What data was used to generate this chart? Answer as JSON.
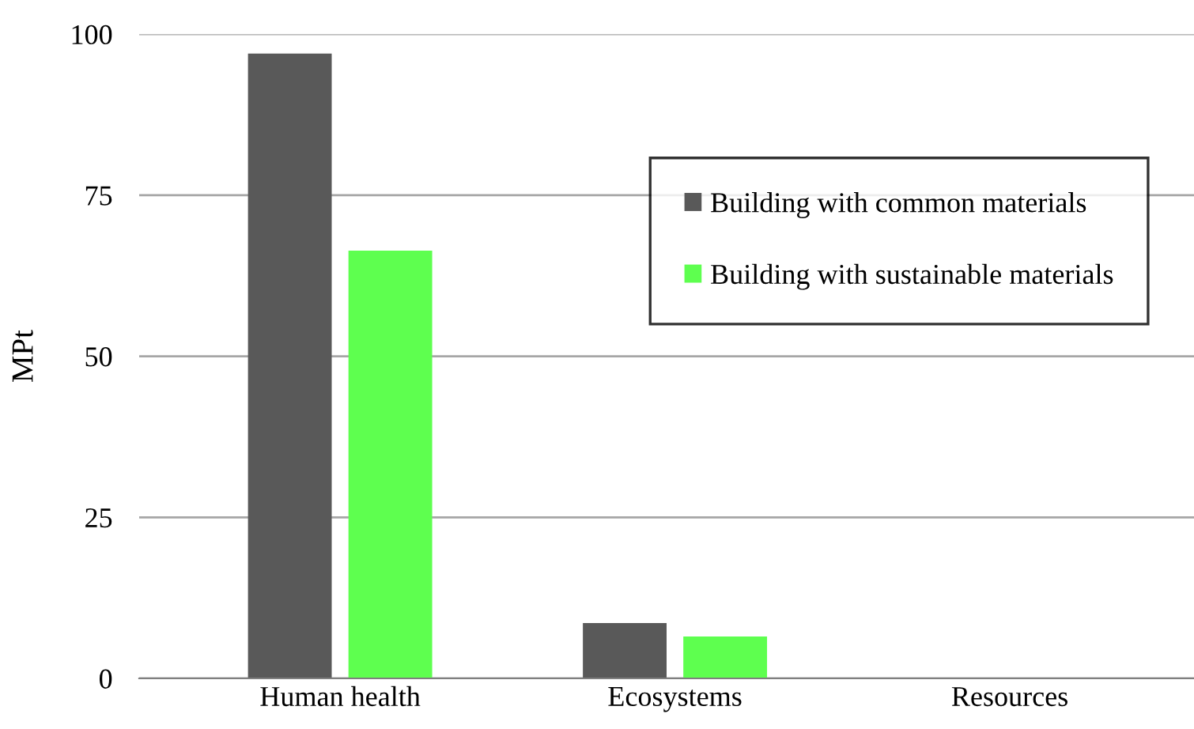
{
  "chart_data": {
    "type": "bar",
    "ylabel": "MPt",
    "categories": [
      "Human health",
      "Ecosystems",
      "Resources"
    ],
    "series": [
      {
        "name": "Building with common materials",
        "color": "#595959",
        "values": [
          97,
          8.6,
          0
        ]
      },
      {
        "name": "Building with sustainable materials",
        "color": "#5eff4f",
        "values": [
          66.4,
          6.5,
          0
        ]
      }
    ],
    "ylim": [
      0,
      100
    ],
    "yticks": [
      0,
      25,
      50,
      75,
      100
    ],
    "grid": "y",
    "legend": "top right"
  }
}
